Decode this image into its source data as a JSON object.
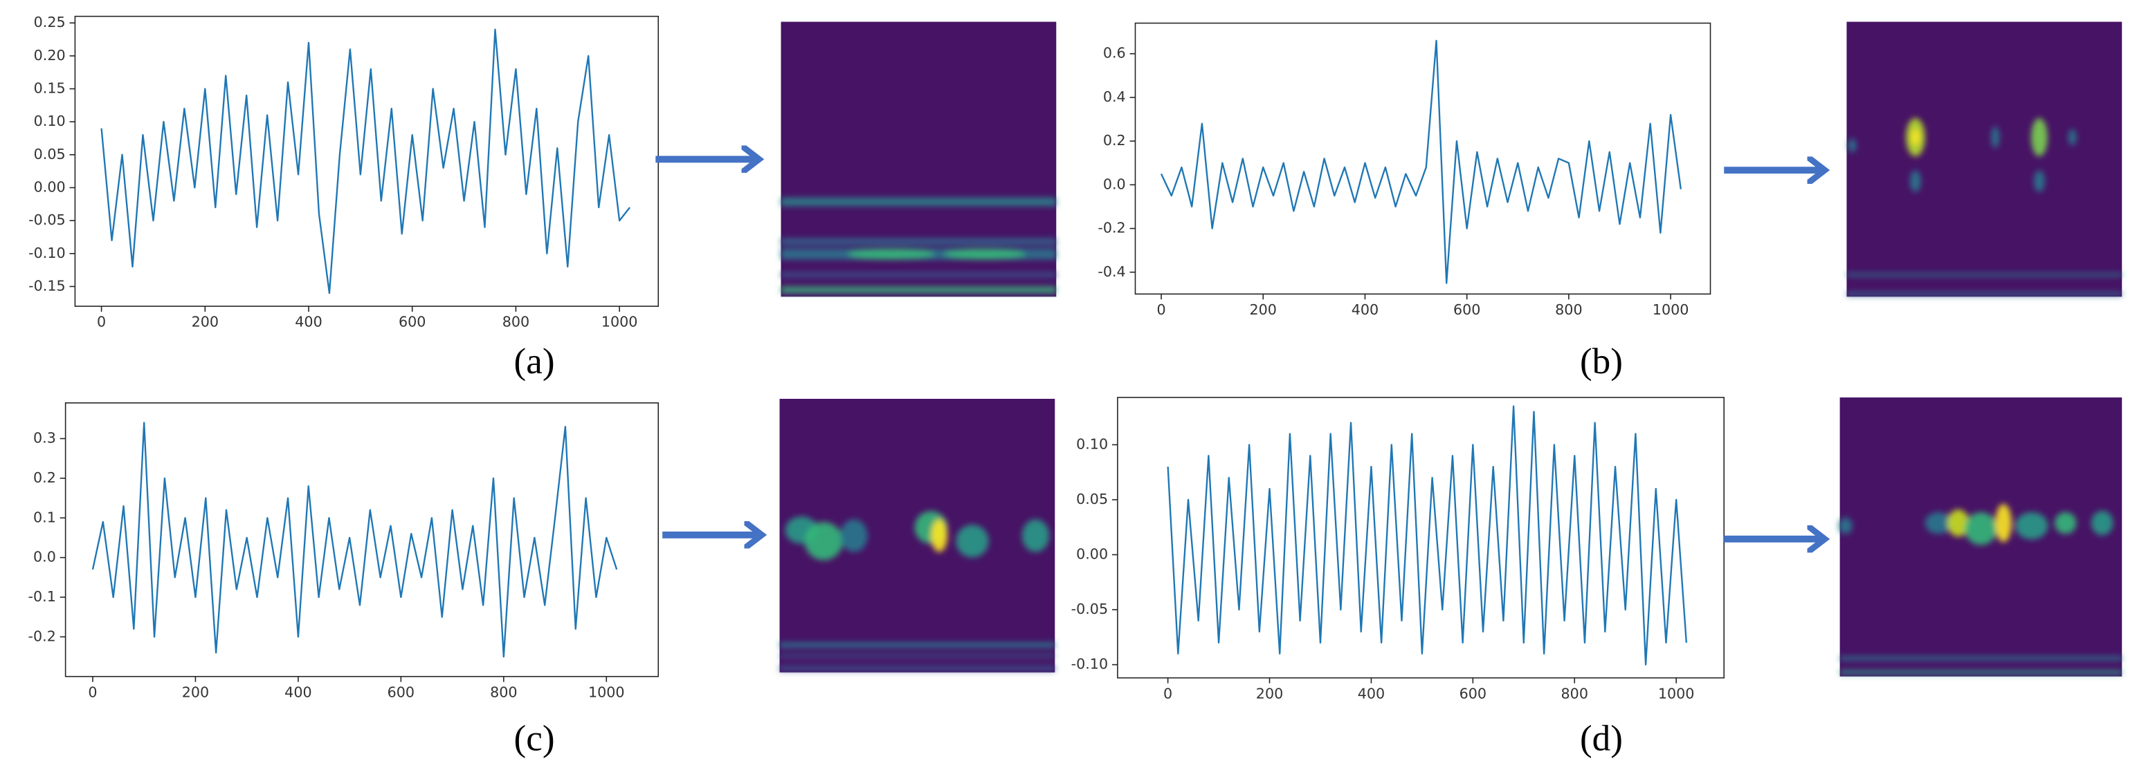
{
  "chart_data": [
    {
      "type": "line",
      "caption": "(a)",
      "color": "#1f77b4",
      "x": [
        0,
        20,
        40,
        60,
        80,
        100,
        120,
        140,
        160,
        180,
        200,
        220,
        240,
        260,
        280,
        300,
        320,
        340,
        360,
        380,
        400,
        420,
        440,
        460,
        480,
        500,
        520,
        540,
        560,
        580,
        600,
        620,
        640,
        660,
        680,
        700,
        720,
        740,
        760,
        780,
        800,
        820,
        840,
        860,
        880,
        900,
        920,
        940,
        960,
        980,
        1000,
        1020
      ],
      "values": [
        0.09,
        -0.08,
        0.05,
        -0.12,
        0.08,
        -0.05,
        0.1,
        -0.02,
        0.12,
        0,
        0.15,
        -0.03,
        0.17,
        -0.01,
        0.14,
        -0.06,
        0.11,
        -0.05,
        0.16,
        0.02,
        0.22,
        -0.04,
        -0.16,
        0.05,
        0.21,
        0.02,
        0.18,
        -0.02,
        0.12,
        -0.07,
        0.08,
        -0.05,
        0.15,
        0.03,
        0.12,
        -0.02,
        0.1,
        -0.06,
        0.24,
        0.05,
        0.18,
        -0.01,
        0.12,
        -0.1,
        0.06,
        -0.12,
        0.1,
        0.2,
        -0.03,
        0.08,
        -0.05,
        -0.03
      ],
      "xlim": [
        -51,
        1075
      ],
      "ylim": [
        -0.18,
        0.26
      ],
      "xticks": [
        0,
        200,
        400,
        600,
        800,
        1000
      ],
      "yticks": [
        -0.15,
        {
          "value": -0.1,
          "label": "-0.10"
        },
        -0.05,
        {
          "value": 0,
          "label": "0.00"
        },
        0.05,
        {
          "value": 0.1,
          "label": "0.10"
        },
        0.15,
        {
          "value": 0.2,
          "label": "0.20"
        },
        0.25
      ]
    },
    {
      "type": "line",
      "caption": "(b)",
      "color": "#1f77b4",
      "x": [
        0,
        20,
        40,
        60,
        80,
        100,
        120,
        140,
        160,
        180,
        200,
        220,
        240,
        260,
        280,
        300,
        320,
        340,
        360,
        380,
        400,
        420,
        440,
        460,
        480,
        500,
        520,
        540,
        560,
        580,
        600,
        620,
        640,
        660,
        680,
        700,
        720,
        740,
        760,
        780,
        800,
        820,
        840,
        860,
        880,
        900,
        920,
        940,
        960,
        980,
        1000,
        1020
      ],
      "values": [
        0.05,
        -0.05,
        0.08,
        -0.1,
        0.28,
        -0.2,
        0.1,
        -0.08,
        0.12,
        -0.1,
        0.08,
        -0.05,
        0.1,
        -0.12,
        0.06,
        -0.1,
        0.12,
        -0.05,
        0.08,
        -0.08,
        0.1,
        -0.06,
        0.08,
        -0.1,
        0.05,
        -0.05,
        0.08,
        0.66,
        -0.45,
        0.2,
        -0.2,
        0.15,
        -0.1,
        0.12,
        -0.08,
        0.1,
        -0.12,
        0.08,
        -0.06,
        0.12,
        0.1,
        -0.15,
        0.2,
        -0.12,
        0.15,
        -0.18,
        0.1,
        -0.15,
        0.28,
        -0.22,
        0.32,
        -0.02
      ],
      "xlim": [
        -51,
        1078
      ],
      "ylim": [
        -0.5,
        0.74
      ],
      "xticks": [
        0,
        200,
        400,
        600,
        800,
        1000
      ],
      "yticks": [
        -0.4,
        -0.2,
        {
          "value": 0,
          "label": "0.0"
        },
        0.2,
        0.4,
        0.6
      ]
    },
    {
      "type": "line",
      "caption": "(c)",
      "color": "#1f77b4",
      "x": [
        0,
        20,
        40,
        60,
        80,
        100,
        120,
        140,
        160,
        180,
        200,
        220,
        240,
        260,
        280,
        300,
        320,
        340,
        360,
        380,
        400,
        420,
        440,
        460,
        480,
        500,
        520,
        540,
        560,
        580,
        600,
        620,
        640,
        660,
        680,
        700,
        720,
        740,
        760,
        780,
        800,
        820,
        840,
        860,
        880,
        900,
        920,
        940,
        960,
        980,
        1000,
        1020
      ],
      "values": [
        -0.03,
        0.09,
        -0.1,
        0.13,
        -0.18,
        0.34,
        -0.2,
        0.2,
        -0.05,
        0.1,
        -0.1,
        0.15,
        -0.24,
        0.12,
        -0.08,
        0.05,
        -0.1,
        0.1,
        -0.05,
        0.15,
        -0.2,
        0.18,
        -0.1,
        0.1,
        -0.08,
        0.05,
        -0.12,
        0.12,
        -0.05,
        0.08,
        -0.1,
        0.06,
        -0.05,
        0.1,
        -0.15,
        0.12,
        -0.08,
        0.08,
        -0.12,
        0.2,
        -0.25,
        0.15,
        -0.1,
        0.05,
        -0.12,
        0.1,
        0.33,
        -0.18,
        0.15,
        -0.1,
        0.05,
        -0.03
      ],
      "xlim": [
        -53,
        1101
      ],
      "ylim": [
        -0.3,
        0.39
      ],
      "xticks": [
        0,
        200,
        400,
        600,
        800,
        1000
      ],
      "yticks": [
        -0.2,
        -0.1,
        {
          "value": 0,
          "label": "0.0"
        },
        0.1,
        0.2,
        0.3
      ]
    },
    {
      "type": "line",
      "caption": "(d)",
      "color": "#1f77b4",
      "x": [
        0,
        20,
        40,
        60,
        80,
        100,
        120,
        140,
        160,
        180,
        200,
        220,
        240,
        260,
        280,
        300,
        320,
        340,
        360,
        380,
        400,
        420,
        440,
        460,
        480,
        500,
        520,
        540,
        560,
        580,
        600,
        620,
        640,
        660,
        680,
        700,
        720,
        740,
        760,
        780,
        800,
        820,
        840,
        860,
        880,
        900,
        920,
        940,
        960,
        980,
        1000,
        1020
      ],
      "values": [
        0.08,
        -0.09,
        0.05,
        -0.06,
        0.09,
        -0.08,
        0.07,
        -0.05,
        0.1,
        -0.07,
        0.06,
        -0.09,
        0.11,
        -0.06,
        0.09,
        -0.08,
        0.11,
        -0.05,
        0.12,
        -0.07,
        0.08,
        -0.08,
        0.1,
        -0.06,
        0.11,
        -0.09,
        0.07,
        -0.05,
        0.09,
        -0.08,
        0.1,
        -0.07,
        0.08,
        -0.06,
        0.135,
        -0.08,
        0.13,
        -0.09,
        0.1,
        -0.06,
        0.09,
        -0.08,
        0.12,
        -0.07,
        0.08,
        -0.05,
        0.11,
        -0.1,
        0.06,
        -0.08,
        0.05,
        -0.08
      ],
      "xlim": [
        -99,
        1094
      ],
      "ylim": [
        -0.112,
        0.143
      ],
      "xticks": [
        0,
        200,
        400,
        600,
        800,
        1000
      ],
      "yticks": [
        {
          "value": -0.1,
          "label": "-0.10"
        },
        -0.05,
        {
          "value": 0,
          "label": "0.00"
        },
        0.05,
        {
          "value": 0.1,
          "label": "0.10"
        }
      ]
    }
  ]
}
